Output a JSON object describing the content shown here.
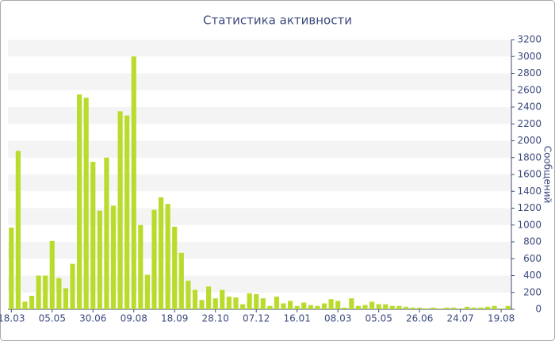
{
  "chart_data": {
    "type": "bar",
    "title": "Статистика активности",
    "y_label": "Сообщений",
    "color": "#b9dc2c",
    "grid": true,
    "categories": [
      "18.03",
      null,
      null,
      null,
      null,
      null,
      "05.05",
      null,
      null,
      null,
      null,
      null,
      "30.06",
      null,
      null,
      null,
      null,
      null,
      "09.08",
      null,
      null,
      null,
      null,
      null,
      "18.09",
      null,
      null,
      null,
      null,
      null,
      "28.10",
      null,
      null,
      null,
      null,
      null,
      "07.12",
      null,
      null,
      null,
      null,
      null,
      "16.01",
      null,
      null,
      null,
      null,
      null,
      "08.03",
      null,
      null,
      null,
      null,
      null,
      "05.05",
      null,
      null,
      null,
      null,
      null,
      "26.06",
      null,
      null,
      null,
      null,
      null,
      "24.07",
      null,
      null,
      null,
      null,
      null,
      "19.08",
      null
    ],
    "values": [
      970,
      1880,
      90,
      160,
      400,
      400,
      810,
      370,
      250,
      540,
      2550,
      2510,
      1750,
      1170,
      1800,
      1230,
      2350,
      2300,
      3000,
      1000,
      410,
      1180,
      1330,
      1250,
      980,
      670,
      340,
      230,
      110,
      270,
      130,
      230,
      150,
      140,
      60,
      190,
      180,
      130,
      40,
      150,
      70,
      100,
      40,
      80,
      50,
      40,
      70,
      120,
      100,
      20,
      130,
      40,
      50,
      90,
      60,
      60,
      40,
      40,
      30,
      20,
      20,
      10,
      20,
      10,
      20,
      20,
      10,
      30,
      20,
      20,
      30,
      40,
      10,
      40
    ],
    "ylim": [
      0,
      3200
    ],
    "yticks": [
      0,
      200,
      400,
      600,
      800,
      1000,
      1200,
      1400,
      1600,
      1800,
      2000,
      2200,
      2400,
      2600,
      2800,
      3000,
      3200
    ]
  }
}
